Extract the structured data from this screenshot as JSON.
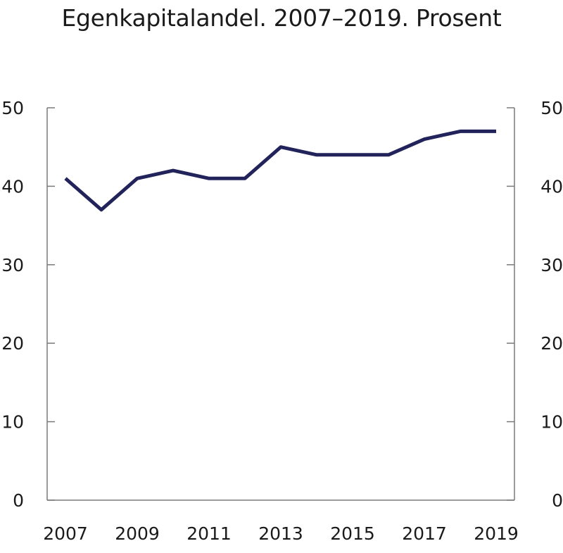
{
  "chart_data": {
    "type": "line",
    "title": "Egenkapitalandel. 2007–2019. Prosent",
    "xlabel": "",
    "ylabel": "",
    "x": [
      2007,
      2008,
      2009,
      2010,
      2011,
      2012,
      2013,
      2014,
      2015,
      2016,
      2017,
      2018,
      2019
    ],
    "series": [
      {
        "name": "Egenkapitalandel",
        "values": [
          41,
          37,
          41,
          42,
          41,
          41,
          45,
          44,
          44,
          44,
          46,
          47,
          47
        ],
        "color": "#22235a"
      }
    ],
    "xlim": [
      2006.5,
      2019.5
    ],
    "ylim": [
      0,
      50
    ],
    "x_tick_labels": [
      "2007",
      "2009",
      "2011",
      "2013",
      "2015",
      "2017",
      "2019"
    ],
    "y_tick_labels": [
      "0",
      "10",
      "20",
      "30",
      "40",
      "50"
    ],
    "y_tick_labels_right": [
      "0",
      "10",
      "20",
      "30",
      "40",
      "50"
    ],
    "grid": false,
    "legend": "none",
    "axis_color": "#7a7a7a"
  }
}
